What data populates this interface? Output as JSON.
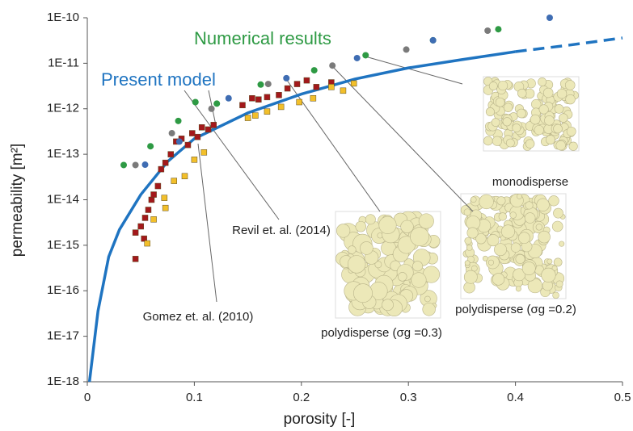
{
  "chart_data": {
    "type": "scatter",
    "x_label": "porosity [-]",
    "y_label": "permeability [m²]",
    "annotation": "Numerical results",
    "xlim": [
      0,
      0.5
    ],
    "xticks": [
      0,
      0.1,
      0.2,
      0.3,
      0.4,
      0.5
    ],
    "ylim": [
      1e-18,
      1e-10
    ],
    "log_y": true,
    "yticks": [
      {
        "value": 1e-18,
        "label": "1E-18"
      },
      {
        "value": 1e-17,
        "label": "1E-17"
      },
      {
        "value": 1e-16,
        "label": "1E-16"
      },
      {
        "value": 1e-15,
        "label": "1E-15"
      },
      {
        "value": 1e-14,
        "label": "1E-14"
      },
      {
        "value": 1e-13,
        "label": "1E-13"
      },
      {
        "value": 1e-12,
        "label": "1E-12"
      },
      {
        "value": 1e-11,
        "label": "1E-11"
      },
      {
        "value": 1e-10,
        "label": "1E-10"
      }
    ],
    "grid": false,
    "series": [
      {
        "name": "Present model",
        "marker": "line",
        "color": "#1f74c1",
        "dash_from_x": 0.4,
        "x": [
          0.002,
          0.01,
          0.02,
          0.03,
          0.05,
          0.075,
          0.1,
          0.15,
          0.2,
          0.25,
          0.3,
          0.35,
          0.4,
          0.45,
          0.5
        ],
        "values": [
          1e-18,
          3.6e-17,
          5.6e-16,
          2.2e-15,
          1.3e-14,
          6.9e-14,
          2.2e-13,
          8.1e-13,
          2.1e-12,
          4.5e-12,
          7.9e-12,
          1.2e-11,
          1.8e-11,
          2.5e-11,
          3.6e-11
        ]
      },
      {
        "name": "Gomez et. al. (2010)",
        "marker": "square",
        "color": "#a3181b",
        "x": [
          0.045,
          0.045,
          0.05,
          0.053,
          0.054,
          0.057,
          0.06,
          0.062,
          0.066,
          0.069,
          0.073,
          0.078,
          0.083,
          0.088,
          0.094,
          0.098,
          0.103,
          0.107,
          0.113,
          0.118,
          0.145,
          0.154,
          0.16,
          0.168,
          0.179,
          0.187,
          0.196,
          0.205,
          0.214,
          0.228
        ],
        "values": [
          5e-16,
          1.9e-15,
          2.6e-15,
          1.4e-15,
          4e-15,
          6e-15,
          1e-14,
          1.3e-14,
          2e-14,
          4.7e-14,
          6.5e-14,
          1e-13,
          1.9e-13,
          2.2e-13,
          1.6e-13,
          2.9e-13,
          2.4e-13,
          3.9e-13,
          3.5e-13,
          4.4e-13,
          1.2e-12,
          1.7e-12,
          1.6e-12,
          1.8e-12,
          2e-12,
          2.8e-12,
          3.5e-12,
          4.2e-12,
          3e-12,
          3.8e-12
        ]
      },
      {
        "name": "Revil et. al. (2014)",
        "marker": "square",
        "color": "#f2bf2a",
        "x": [
          0.056,
          0.062,
          0.072,
          0.073,
          0.081,
          0.091,
          0.1,
          0.109,
          0.15,
          0.157,
          0.168,
          0.181,
          0.198,
          0.211,
          0.228,
          0.239,
          0.249
        ],
        "values": [
          1.1e-15,
          3.7e-15,
          1.1e-14,
          6.6e-15,
          2.6e-14,
          3.3e-14,
          7.6e-14,
          1.1e-13,
          6.3e-13,
          7.1e-13,
          8.7e-13,
          1.1e-12,
          1.4e-12,
          1.7e-12,
          3e-12,
          2.5e-12,
          3.6e-12
        ]
      },
      {
        "name": "monodisperse",
        "marker": "circle",
        "color": "#2e9a44",
        "x": [
          0.034,
          0.059,
          0.085,
          0.101,
          0.121,
          0.162,
          0.212,
          0.26,
          0.323,
          0.384
        ],
        "values": [
          5.8e-14,
          1.5e-13,
          5.4e-13,
          1.4e-12,
          1.3e-12,
          3.4e-12,
          7e-12,
          1.5e-11,
          3.2e-11,
          5.6e-11
        ]
      },
      {
        "name": "polydisperse (σg =0.2)",
        "marker": "circle",
        "color": "#7a7a7a",
        "x": [
          0.045,
          0.079,
          0.116,
          0.169,
          0.229,
          0.298,
          0.374
        ],
        "values": [
          5.8e-14,
          2.9e-13,
          1e-12,
          3.5e-12,
          8.9e-12,
          2e-11,
          5.2e-11
        ]
      },
      {
        "name": "polydisperse (σg =0.3)",
        "marker": "circle",
        "color": "#3f6db3",
        "x": [
          0.054,
          0.086,
          0.132,
          0.186,
          0.252,
          0.323,
          0.432
        ],
        "values": [
          5.9e-14,
          1.9e-13,
          1.7e-12,
          4.7e-12,
          1.3e-11,
          3.2e-11,
          1e-10
        ]
      }
    ]
  }
}
